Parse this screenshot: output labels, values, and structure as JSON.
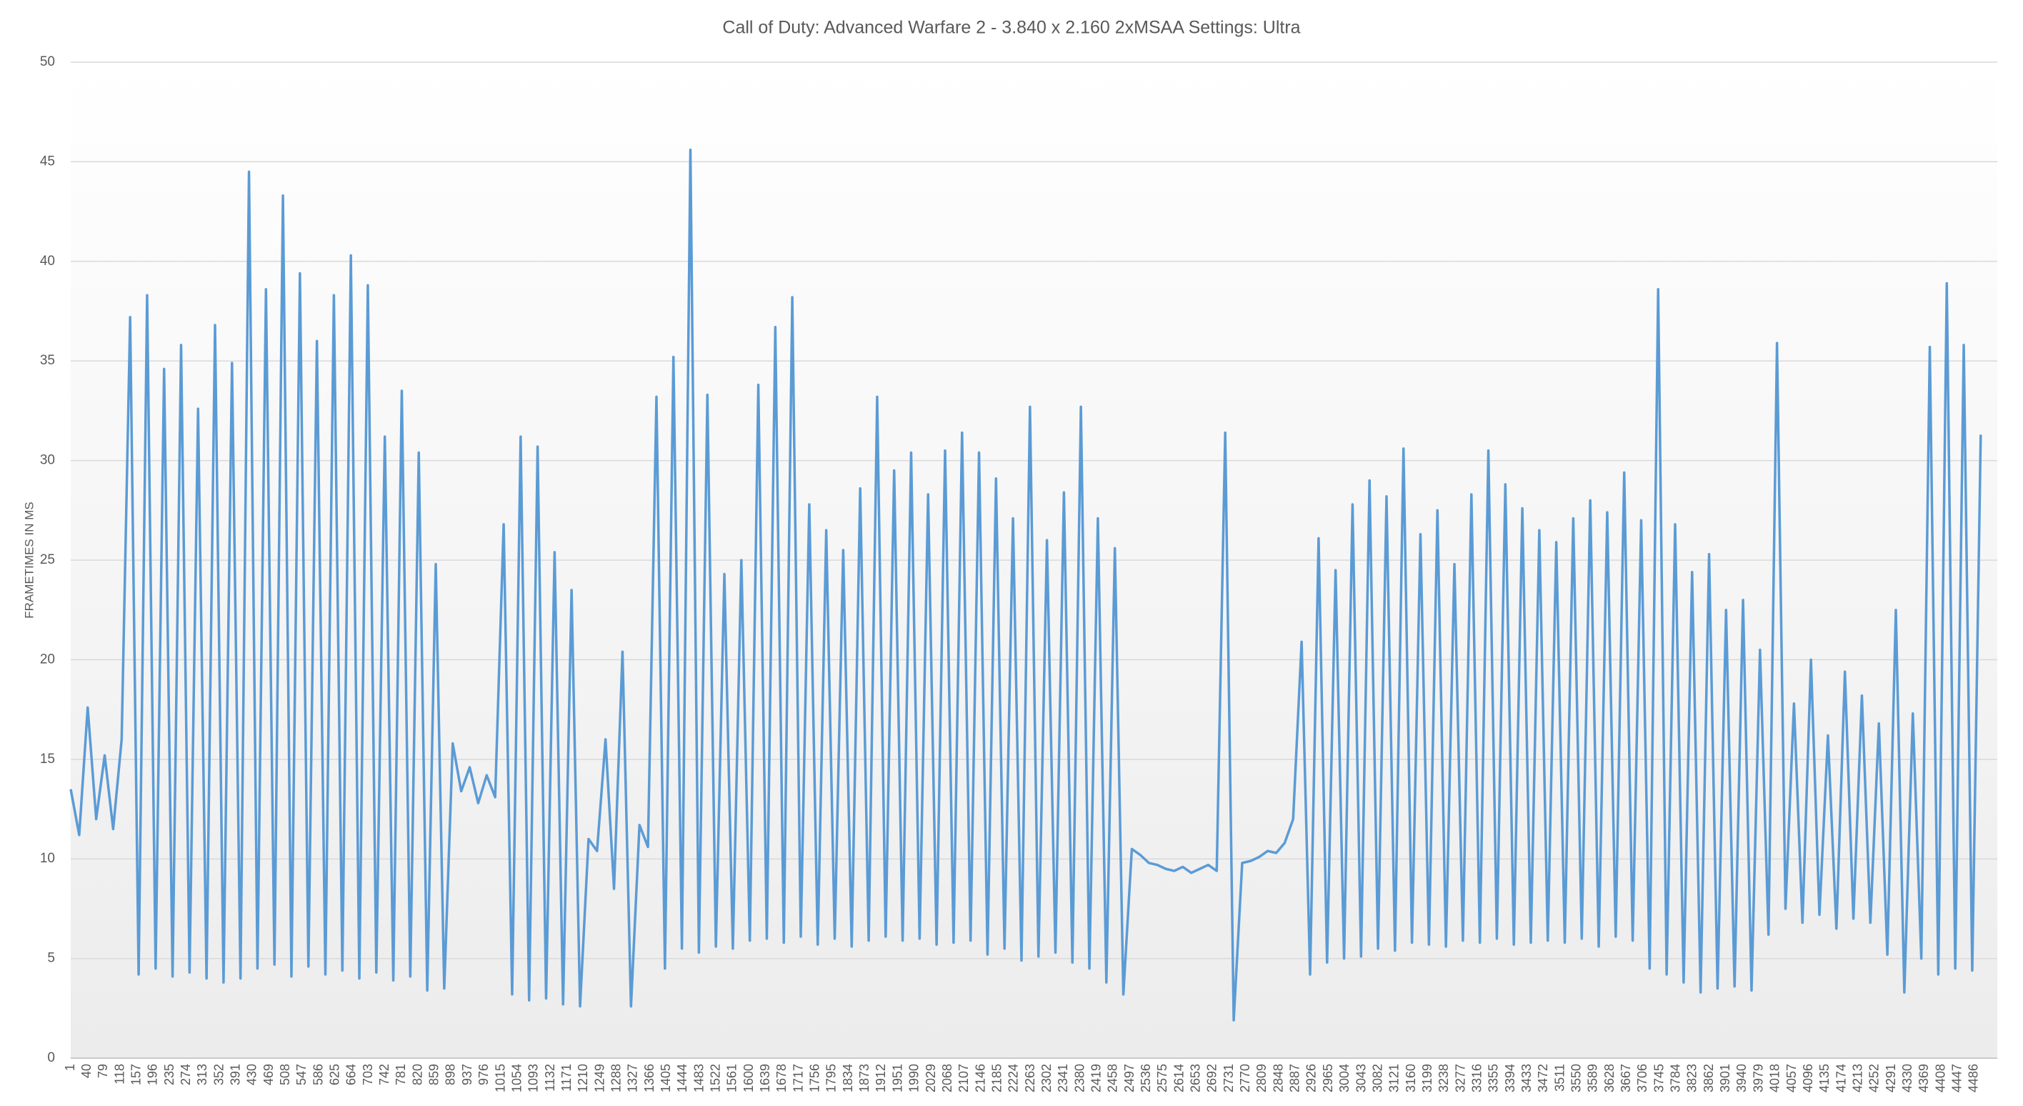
{
  "chart_data": {
    "type": "line",
    "title": "Call of Duty: Advanced Warfare 2 - 3.840 x 2.160 2xMSAA Settings: Ultra",
    "y_label": "FRAMETIMES IN MS",
    "color": "#5b9bd5",
    "grid": true,
    "ylim": [
      0,
      50
    ],
    "yticks": [
      0,
      5,
      10,
      15,
      20,
      25,
      30,
      35,
      40,
      45,
      50
    ],
    "xlim": [
      1,
      4540
    ],
    "xticks": [
      1,
      40,
      79,
      118,
      157,
      196,
      235,
      274,
      313,
      352,
      391,
      430,
      469,
      508,
      547,
      586,
      625,
      664,
      703,
      742,
      781,
      820,
      859,
      898,
      937,
      976,
      1015,
      1054,
      1093,
      1132,
      1171,
      1210,
      1249,
      1288,
      1327,
      1366,
      1405,
      1444,
      1483,
      1522,
      1561,
      1600,
      1639,
      1678,
      1717,
      1756,
      1795,
      1834,
      1873,
      1912,
      1951,
      1990,
      2029,
      2068,
      2107,
      2146,
      2185,
      2224,
      2263,
      2302,
      2341,
      2380,
      2419,
      2458,
      2497,
      2536,
      2575,
      2614,
      2653,
      2692,
      2731,
      2770,
      2809,
      2848,
      2887,
      2926,
      2965,
      3004,
      3043,
      3082,
      3121,
      3160,
      3199,
      3238,
      3277,
      3316,
      3355,
      3394,
      3433,
      3472,
      3511,
      3550,
      3589,
      3628,
      3667,
      3706,
      3745,
      3784,
      3823,
      3862,
      3901,
      3940,
      3979,
      4018,
      4057,
      4096,
      4135,
      4174,
      4213,
      4252,
      4291,
      4330,
      4369,
      4408,
      4447,
      4486
    ],
    "x": [
      1,
      21,
      41,
      61,
      81,
      101,
      121,
      141,
      161,
      181,
      201,
      221,
      241,
      261,
      281,
      301,
      321,
      341,
      361,
      381,
      401,
      421,
      441,
      461,
      481,
      501,
      521,
      541,
      561,
      581,
      601,
      621,
      641,
      661,
      681,
      701,
      721,
      741,
      761,
      781,
      801,
      821,
      841,
      861,
      881,
      901,
      921,
      941,
      961,
      981,
      1001,
      1021,
      1041,
      1061,
      1081,
      1101,
      1121,
      1141,
      1161,
      1181,
      1201,
      1221,
      1241,
      1261,
      1281,
      1301,
      1321,
      1341,
      1361,
      1381,
      1401,
      1421,
      1441,
      1461,
      1481,
      1501,
      1521,
      1541,
      1561,
      1581,
      1601,
      1621,
      1641,
      1661,
      1681,
      1701,
      1721,
      1741,
      1761,
      1781,
      1801,
      1821,
      1841,
      1861,
      1881,
      1901,
      1921,
      1941,
      1961,
      1981,
      2001,
      2021,
      2041,
      2061,
      2081,
      2101,
      2121,
      2141,
      2161,
      2181,
      2201,
      2221,
      2241,
      2261,
      2281,
      2301,
      2321,
      2341,
      2361,
      2381,
      2401,
      2421,
      2441,
      2461,
      2481,
      2501,
      2521,
      2541,
      2561,
      2581,
      2601,
      2621,
      2641,
      2661,
      2681,
      2701,
      2721,
      2741,
      2761,
      2781,
      2801,
      2821,
      2841,
      2861,
      2881,
      2901,
      2921,
      2941,
      2961,
      2981,
      3001,
      3021,
      3041,
      3061,
      3081,
      3101,
      3121,
      3141,
      3161,
      3181,
      3201,
      3221,
      3241,
      3261,
      3281,
      3301,
      3321,
      3341,
      3361,
      3381,
      3401,
      3421,
      3441,
      3461,
      3481,
      3501,
      3521,
      3541,
      3561,
      3581,
      3601,
      3621,
      3641,
      3661,
      3681,
      3701,
      3721,
      3741,
      3761,
      3781,
      3801,
      3821,
      3841,
      3861,
      3881,
      3901,
      3921,
      3941,
      3961,
      3981,
      4001,
      4021,
      4041,
      4061,
      4081,
      4101,
      4121,
      4141,
      4161,
      4181,
      4201,
      4221,
      4241,
      4261,
      4281,
      4301,
      4321,
      4341,
      4361,
      4381,
      4401,
      4421,
      4441,
      4461,
      4481,
      4501
    ],
    "values": [
      13.5,
      11.2,
      17.6,
      12.0,
      15.2,
      11.5,
      16.0,
      37.2,
      4.2,
      38.3,
      4.5,
      34.6,
      4.1,
      35.8,
      4.3,
      32.6,
      4.0,
      36.8,
      3.8,
      34.9,
      4.0,
      44.5,
      4.5,
      38.6,
      4.7,
      43.3,
      4.1,
      39.4,
      4.6,
      36.0,
      4.2,
      38.3,
      4.4,
      40.3,
      4.0,
      38.8,
      4.3,
      31.2,
      3.9,
      33.5,
      4.1,
      30.4,
      3.4,
      24.8,
      3.5,
      15.8,
      13.4,
      14.6,
      12.8,
      14.2,
      13.1,
      26.8,
      3.2,
      31.2,
      2.9,
      30.7,
      3.0,
      25.4,
      2.7,
      23.5,
      2.6,
      11.0,
      10.4,
      16.0,
      8.5,
      20.4,
      2.6,
      11.7,
      10.6,
      33.2,
      4.5,
      35.2,
      5.5,
      45.6,
      5.3,
      33.3,
      5.6,
      24.3,
      5.5,
      25.0,
      5.9,
      33.8,
      6.0,
      36.7,
      5.8,
      38.2,
      6.1,
      27.8,
      5.7,
      26.5,
      6.0,
      25.5,
      5.6,
      28.6,
      5.9,
      33.2,
      6.1,
      29.5,
      5.9,
      30.4,
      6.0,
      28.3,
      5.7,
      30.5,
      5.8,
      31.4,
      5.9,
      30.4,
      5.2,
      29.1,
      5.5,
      27.1,
      4.9,
      32.7,
      5.1,
      26.0,
      5.3,
      28.4,
      4.8,
      32.7,
      4.5,
      27.1,
      3.8,
      25.6,
      3.2,
      10.5,
      10.2,
      9.8,
      9.7,
      9.5,
      9.4,
      9.6,
      9.3,
      9.5,
      9.7,
      9.4,
      31.4,
      1.9,
      9.8,
      9.9,
      10.1,
      10.4,
      10.3,
      10.8,
      12.0,
      20.9,
      4.2,
      26.1,
      4.8,
      24.5,
      5.0,
      27.8,
      5.1,
      29.0,
      5.5,
      28.2,
      5.4,
      30.6,
      5.8,
      26.3,
      5.7,
      27.5,
      5.6,
      24.8,
      5.9,
      28.3,
      5.8,
      30.5,
      6.0,
      28.8,
      5.7,
      27.6,
      5.8,
      26.5,
      5.9,
      25.9,
      5.8,
      27.1,
      6.0,
      28.0,
      5.6,
      27.4,
      6.1,
      29.4,
      5.9,
      27.0,
      4.5,
      38.6,
      4.2,
      26.8,
      3.8,
      24.4,
      3.3,
      25.3,
      3.5,
      22.5,
      3.6,
      23.0,
      3.4,
      20.5,
      6.2,
      35.9,
      7.5,
      17.8,
      6.8,
      20.0,
      7.2,
      16.2,
      6.5,
      19.4,
      7.0,
      18.2,
      6.8,
      16.8,
      5.2,
      22.5,
      3.3,
      17.3,
      5.0,
      35.7,
      4.2,
      38.9,
      4.5,
      35.8,
      4.4,
      31.3
    ]
  }
}
